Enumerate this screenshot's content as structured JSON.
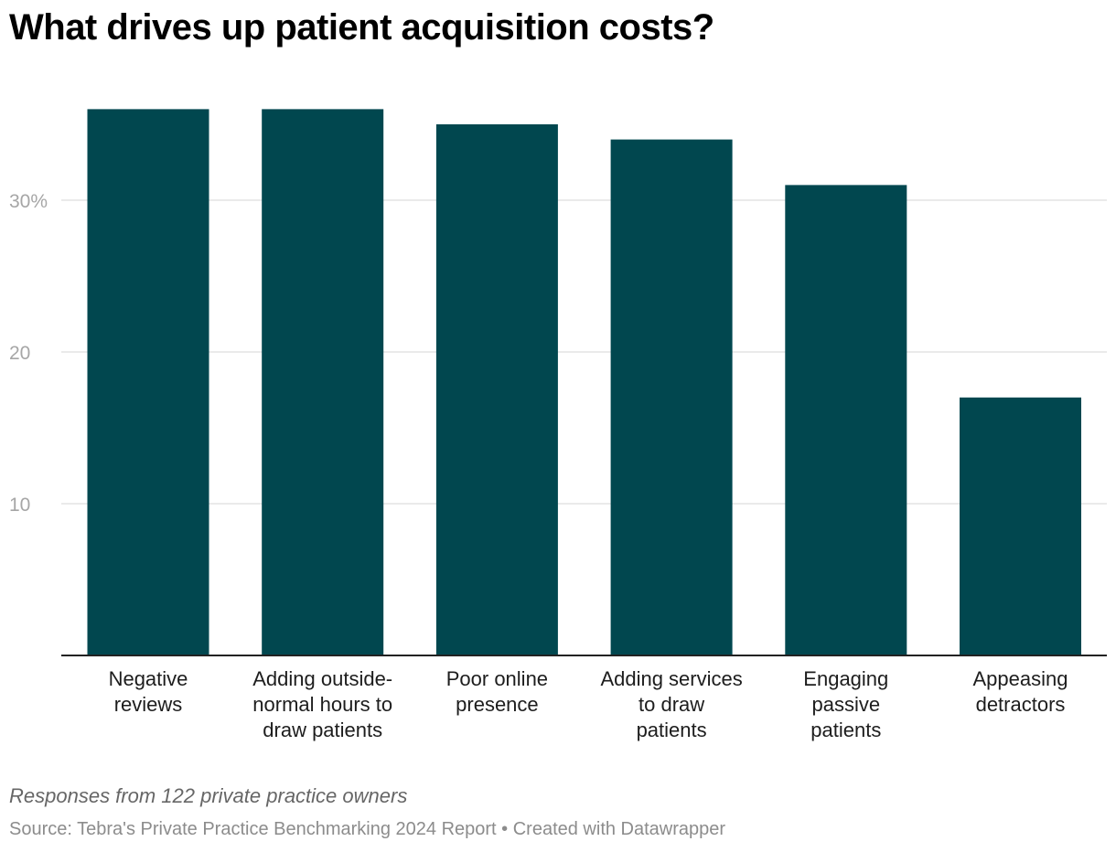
{
  "chart_data": {
    "type": "bar",
    "title": "What drives up patient acquisition costs?",
    "categories": [
      [
        "Negative",
        "reviews"
      ],
      [
        "Adding outside-",
        "normal hours to",
        "draw patients"
      ],
      [
        "Poor online",
        "presence"
      ],
      [
        "Adding services",
        "to draw",
        "patients"
      ],
      [
        "Engaging",
        "passive",
        "patients"
      ],
      [
        "Appeasing",
        "detractors"
      ]
    ],
    "values": [
      36,
      36,
      35,
      34,
      31,
      17
    ],
    "yticks": [
      {
        "value": 10,
        "label": "10"
      },
      {
        "value": 20,
        "label": "20"
      },
      {
        "value": 30,
        "label": "30%"
      }
    ],
    "ylim": [
      0,
      36
    ],
    "grid": true,
    "bar_color": "#01474f",
    "grid_color": "#e3e3e3",
    "axis_color": "#222222"
  },
  "footer": {
    "note": "Responses from 122 private practice owners",
    "source": "Source: Tebra's Private Practice Benchmarking 2024 Report • Created with Datawrapper"
  }
}
